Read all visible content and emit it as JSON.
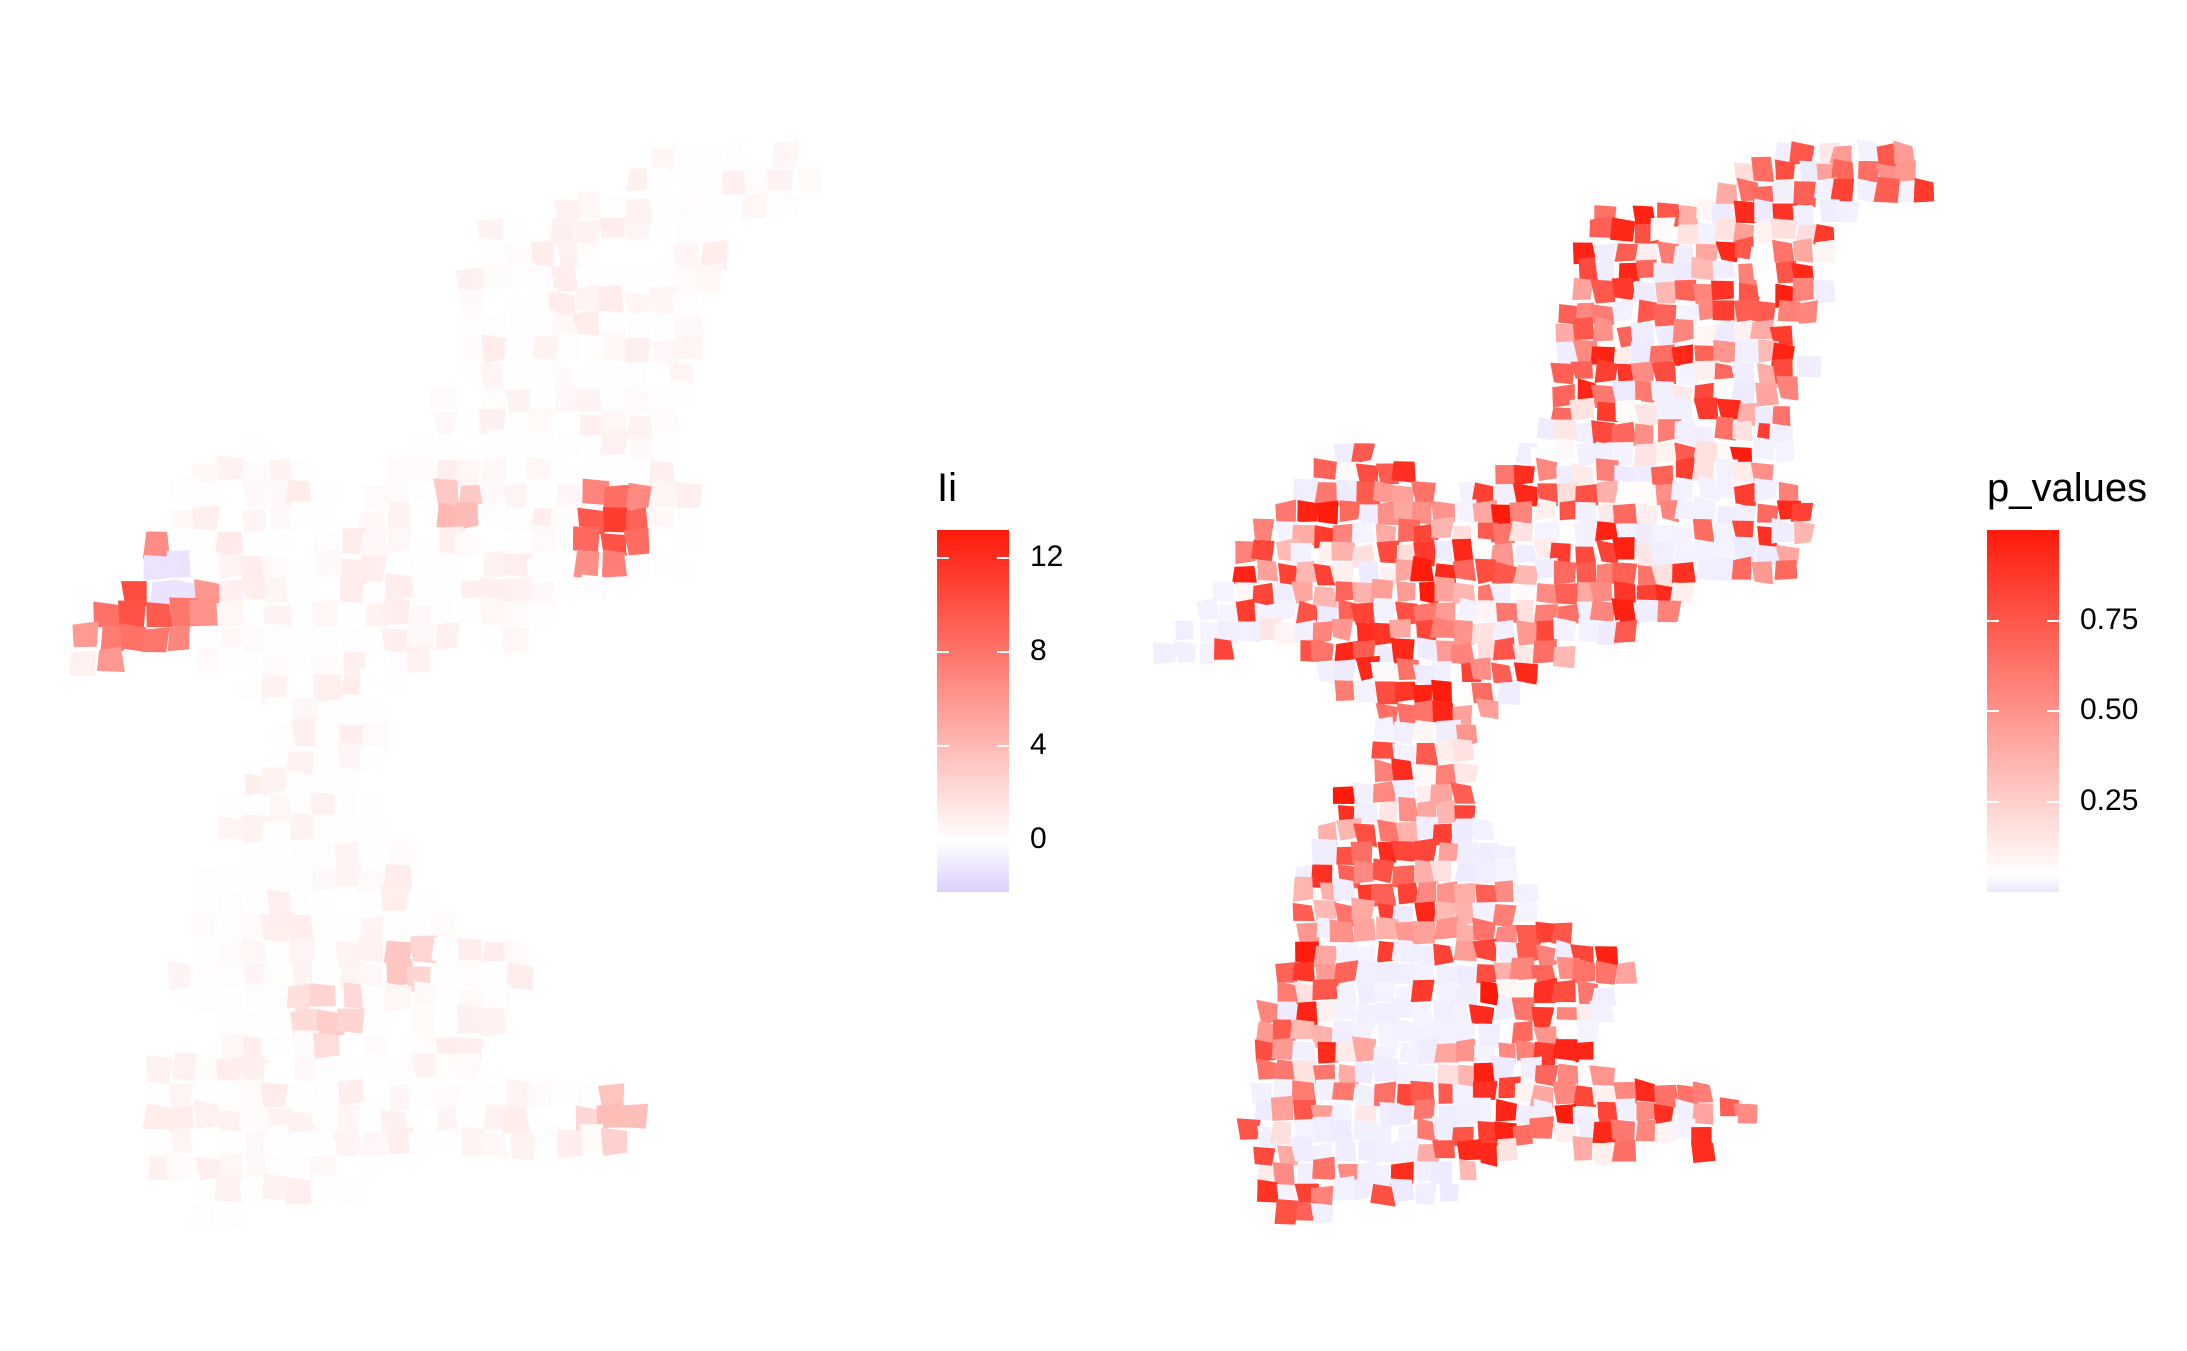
{
  "maps": [
    {
      "id": "left",
      "legend": {
        "title": "Ii",
        "domain": [
          -2.2,
          13.2
        ],
        "ticks": [
          {
            "value": 12,
            "label": "12"
          },
          {
            "value": 8,
            "label": "8"
          },
          {
            "value": 4,
            "label": "4"
          },
          {
            "value": 0,
            "label": "0"
          }
        ]
      },
      "colors": {
        "low": "#ddd0ff",
        "mid": "#ffffff",
        "high": "#ff1a0a"
      }
    },
    {
      "id": "right",
      "legend": {
        "title": "p_values",
        "domain": [
          0.0,
          1.0
        ],
        "ticks": [
          {
            "value": 0.75,
            "label": "0.75"
          },
          {
            "value": 0.5,
            "label": "0.50"
          },
          {
            "value": 0.25,
            "label": "0.25"
          }
        ]
      },
      "colors": {
        "low": "#ece8ff",
        "mid": "#ffffff",
        "high": "#ff1a0a"
      }
    }
  ]
}
